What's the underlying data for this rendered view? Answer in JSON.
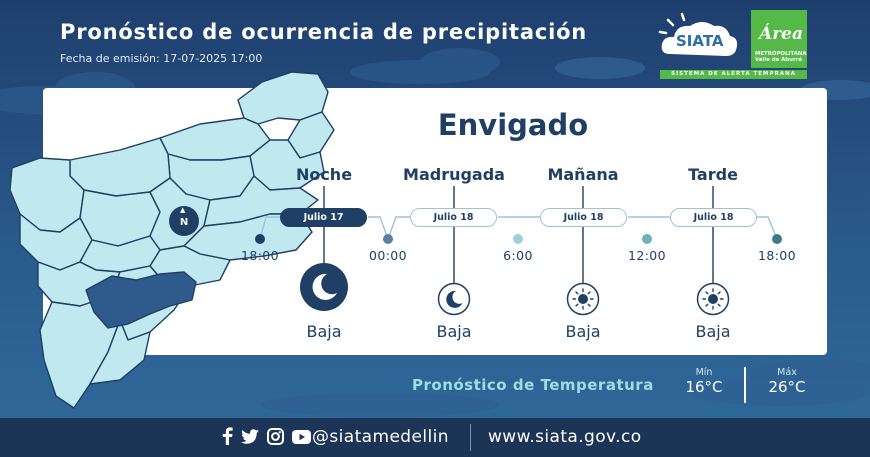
{
  "header": {
    "title": "Pronóstico de ocurrencia de precipitación",
    "issue_label": "Fecha de emisión:",
    "issue_value": "17-07-2025 17:00"
  },
  "logos": {
    "siata_text": "SIATA",
    "area_text": "Área",
    "area_sub_1": "METROPOLITANA",
    "area_sub_2": "Valle de Aburrá",
    "alert_text": "SISTEMA DE ALERTA TEMPRANA"
  },
  "compass_label": "N",
  "forecast": {
    "city": "Envigado",
    "periods": [
      {
        "name": "Noche",
        "date": "Julio 17",
        "level": "Baja",
        "icon": "moon-icon"
      },
      {
        "name": "Madrugada",
        "date": "Julio 18",
        "level": "Baja",
        "icon": "moon-icon"
      },
      {
        "name": "Mañana",
        "date": "Julio 18",
        "level": "Baja",
        "icon": "sun-icon"
      },
      {
        "name": "Tarde",
        "date": "Julio 18",
        "level": "Baja",
        "icon": "sun-icon"
      }
    ],
    "times": [
      "18:00",
      "00:00",
      "6:00",
      "12:00",
      "18:00"
    ]
  },
  "temperature": {
    "title": "Pronóstico de Temperatura",
    "min_label": "Mín",
    "min_value": "16°C",
    "max_label": "Máx",
    "max_value": "26°C"
  },
  "footer": {
    "handle": "@siatamedellin",
    "website": "www.siata.gov.co"
  },
  "colors": {
    "navy": "#1f3f64",
    "map_fill": "#bfe9ef",
    "map_highlight": "#2e5a8c",
    "teal_dot": "#7ab8c4",
    "accent_green": "#54b947"
  }
}
